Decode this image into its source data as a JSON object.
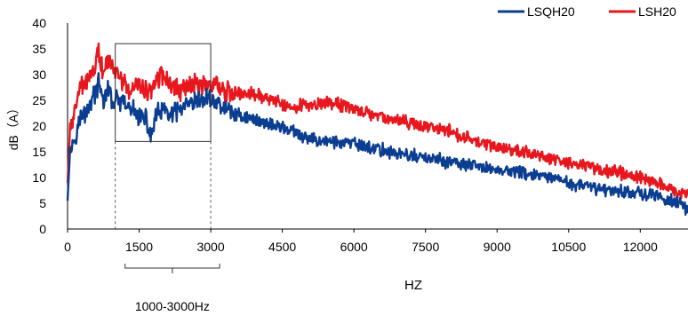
{
  "chart_data": {
    "type": "line",
    "xlabel": "HZ",
    "ylabel": "dB（A）",
    "xlim": [
      0,
      13000
    ],
    "ylim": [
      0,
      40
    ],
    "xticks": [
      0,
      1500,
      3000,
      4500,
      6000,
      7500,
      9000,
      10500,
      12000
    ],
    "yticks": [
      0,
      5,
      10,
      15,
      20,
      25,
      30,
      35,
      40
    ],
    "grid": false,
    "legend_position": "top-right",
    "series": [
      {
        "name": "LSQH20",
        "color": "#0b3d91",
        "x": [
          0,
          50,
          150,
          250,
          400,
          550,
          650,
          750,
          850,
          950,
          1050,
          1200,
          1350,
          1500,
          1650,
          1750,
          1850,
          2000,
          2200,
          2400,
          2600,
          2800,
          3000,
          3200,
          3500,
          3800,
          4200,
          4600,
          5000,
          5500,
          6000,
          6500,
          7000,
          7500,
          8000,
          8500,
          9000,
          9500,
          10000,
          10500,
          11000,
          11500,
          12000,
          12500,
          12800,
          13000
        ],
        "y": [
          5.5,
          15,
          18,
          21,
          23,
          26,
          28,
          25,
          27,
          24.5,
          25,
          24,
          23,
          22,
          21,
          18,
          22,
          23,
          22,
          23.5,
          24,
          25,
          25.5,
          24,
          22.5,
          21.5,
          20.5,
          19.5,
          17.5,
          17,
          16.5,
          15.5,
          14.5,
          13.8,
          13,
          12.2,
          11.5,
          11,
          10,
          9,
          8,
          7.5,
          7,
          6,
          5,
          3.5
        ]
      },
      {
        "name": "LSH20",
        "color": "#e8161d",
        "x": [
          0,
          50,
          150,
          250,
          400,
          550,
          650,
          750,
          850,
          950,
          1050,
          1200,
          1350,
          1500,
          1650,
          1750,
          1850,
          2000,
          2200,
          2400,
          2600,
          2800,
          3000,
          3200,
          3500,
          3800,
          4200,
          4600,
          5000,
          5500,
          6000,
          6500,
          7000,
          7500,
          8000,
          8500,
          9000,
          9500,
          10000,
          10500,
          11000,
          11500,
          12000,
          12500,
          12800,
          13000
        ],
        "y": [
          9,
          19,
          23,
          27,
          29,
          31,
          34,
          30,
          33,
          31,
          30,
          28,
          27,
          28,
          27,
          26,
          29,
          30,
          28,
          27,
          28,
          28,
          28.5,
          27,
          26.5,
          26.5,
          25.5,
          24,
          24,
          24.5,
          23.5,
          22,
          21,
          20,
          19,
          17,
          16,
          15,
          14,
          13,
          12,
          11,
          10,
          8.5,
          7,
          6.5
        ]
      }
    ],
    "highlight": {
      "x_range": [
        1000,
        3000
      ],
      "y_range": [
        17,
        36
      ],
      "label": "1000-3000Hz"
    }
  }
}
